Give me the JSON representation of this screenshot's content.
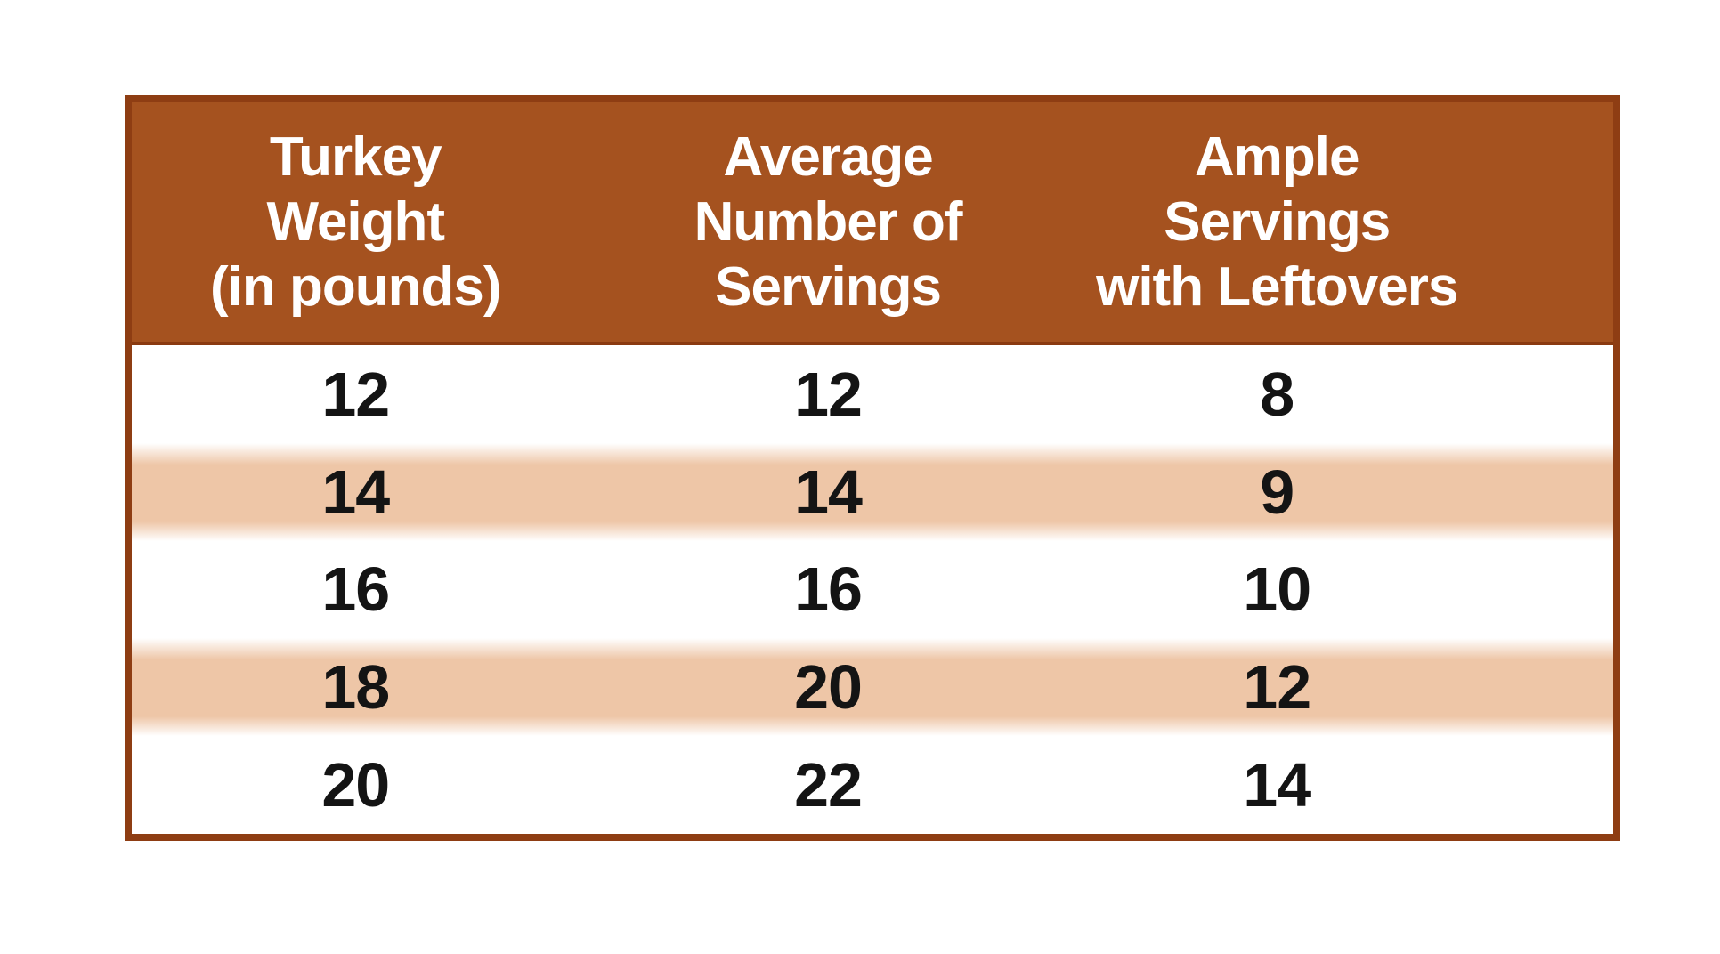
{
  "chart_data": {
    "type": "table",
    "columns": [
      {
        "label": "Turkey Weight (in pounds)",
        "lines": [
          "Turkey",
          "Weight",
          "(in pounds)"
        ]
      },
      {
        "label": "Average Number of Servings",
        "lines": [
          "Average",
          "Number of",
          "Servings"
        ]
      },
      {
        "label": "Ample Servings with Leftovers",
        "lines": [
          "Ample",
          "Servings",
          "with Leftovers"
        ]
      }
    ],
    "rows": [
      [
        "12",
        "12",
        "8"
      ],
      [
        "14",
        "14",
        "9"
      ],
      [
        "16",
        "16",
        "10"
      ],
      [
        "18",
        "20",
        "12"
      ],
      [
        "20",
        "22",
        "14"
      ]
    ]
  },
  "colors": {
    "page-bg": "#ffffff",
    "header-bg": "#a5521f",
    "header-text": "#ffffff",
    "border": "#8e3d13",
    "stripe": "#eec6a7",
    "row-bg": "#ffffff",
    "cell-text": "#141414"
  }
}
